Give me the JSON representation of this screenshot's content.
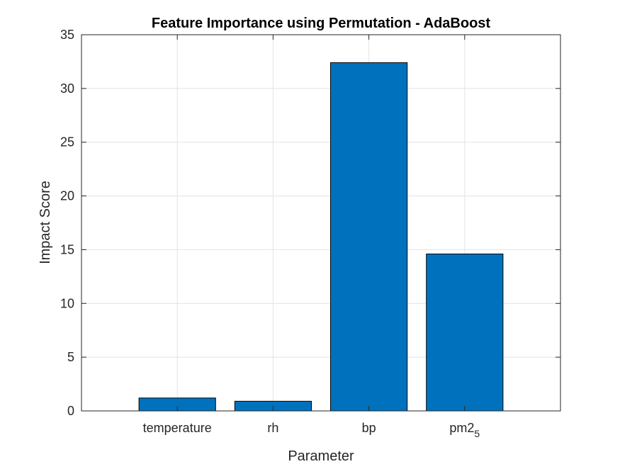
{
  "chart_data": {
    "type": "bar",
    "title": "Feature Importance using Permutation - AdaBoost",
    "xlabel": "Parameter",
    "ylabel": "Impact Score",
    "categories": [
      "temperature",
      "rh",
      "bp",
      "pm2_5"
    ],
    "category_labels": [
      {
        "main": "temperature",
        "sub": ""
      },
      {
        "main": "rh",
        "sub": ""
      },
      {
        "main": "bp",
        "sub": ""
      },
      {
        "main": "pm2",
        "sub": "5"
      }
    ],
    "values": [
      1.2,
      0.9,
      32.4,
      14.6
    ],
    "ylim": [
      0,
      35
    ],
    "yticks": [
      0,
      5,
      10,
      15,
      20,
      25,
      30,
      35
    ],
    "xlim": [
      0,
      5
    ],
    "bar_color": "#0072BD",
    "bar_edge_color": "#000000",
    "grid": true,
    "legend": "none"
  }
}
